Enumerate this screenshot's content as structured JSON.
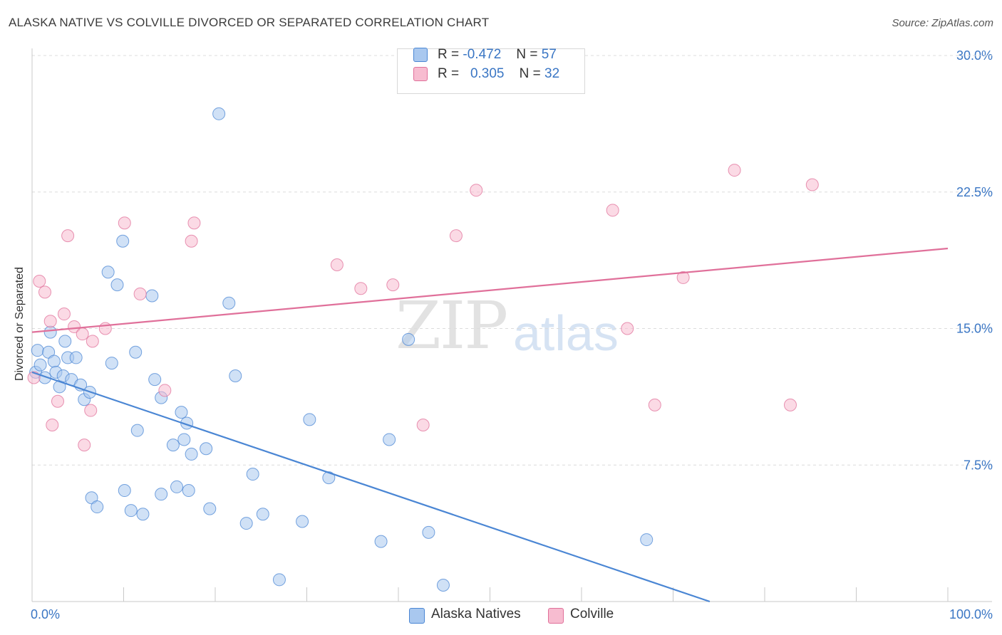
{
  "title": "ALASKA NATIVE VS COLVILLE DIVORCED OR SEPARATED CORRELATION CHART",
  "source": "Source: ZipAtlas.com",
  "watermark": {
    "zip": "ZIP",
    "atlas": "atlas"
  },
  "legend": {
    "rows": [
      {
        "r_label": "R =",
        "r_value": "-0.472",
        "n_label": "N =",
        "n_value": "57",
        "color": "#a9c8ef"
      },
      {
        "r_label": "R =",
        "r_value": "0.305",
        "n_label": "N =",
        "n_value": "32",
        "color": "#f7bcd0"
      }
    ]
  },
  "bottom_legend": [
    {
      "label": "Alaska Natives",
      "color": "#a9c8ef"
    },
    {
      "label": "Colville",
      "color": "#f7bcd0"
    }
  ],
  "chart_data": {
    "type": "scatter",
    "title": "ALASKA NATIVE VS COLVILLE DIVORCED OR SEPARATED CORRELATION CHART",
    "xlabel": "",
    "ylabel": "Divorced or Separated",
    "xlim": [
      0,
      100
    ],
    "ylim": [
      0,
      30
    ],
    "x_tick_labels": [
      "0.0%",
      "100.0%"
    ],
    "y_ticks": [
      7.5,
      15.0,
      22.5,
      30.0
    ],
    "y_tick_labels": [
      "7.5%",
      "15.0%",
      "22.5%",
      "30.0%"
    ],
    "grid": true,
    "legend_position": "top-center",
    "series": [
      {
        "name": "Alaska Natives",
        "color": "#4a86d4",
        "fill": "#a9c8ef",
        "trend": {
          "x": [
            0,
            74
          ],
          "y": [
            12.6,
            0.0
          ]
        },
        "points": [
          {
            "x": 0.4,
            "y": 12.6
          },
          {
            "x": 0.6,
            "y": 13.8
          },
          {
            "x": 0.9,
            "y": 13.0
          },
          {
            "x": 1.4,
            "y": 12.3
          },
          {
            "x": 1.8,
            "y": 13.7
          },
          {
            "x": 2.0,
            "y": 14.8
          },
          {
            "x": 2.4,
            "y": 13.2
          },
          {
            "x": 2.6,
            "y": 12.6
          },
          {
            "x": 3.0,
            "y": 11.8
          },
          {
            "x": 3.4,
            "y": 12.4
          },
          {
            "x": 3.6,
            "y": 14.3
          },
          {
            "x": 3.9,
            "y": 13.4
          },
          {
            "x": 4.3,
            "y": 12.2
          },
          {
            "x": 4.8,
            "y": 13.4
          },
          {
            "x": 5.3,
            "y": 11.9
          },
          {
            "x": 5.7,
            "y": 11.1
          },
          {
            "x": 6.3,
            "y": 11.5
          },
          {
            "x": 6.5,
            "y": 5.7
          },
          {
            "x": 7.1,
            "y": 5.2
          },
          {
            "x": 8.3,
            "y": 18.1
          },
          {
            "x": 8.7,
            "y": 13.1
          },
          {
            "x": 9.3,
            "y": 17.4
          },
          {
            "x": 9.9,
            "y": 19.8
          },
          {
            "x": 10.1,
            "y": 6.1
          },
          {
            "x": 11.3,
            "y": 13.7
          },
          {
            "x": 11.5,
            "y": 9.4
          },
          {
            "x": 12.1,
            "y": 4.8
          },
          {
            "x": 10.8,
            "y": 5.0
          },
          {
            "x": 13.1,
            "y": 16.8
          },
          {
            "x": 13.4,
            "y": 12.2
          },
          {
            "x": 14.1,
            "y": 5.9
          },
          {
            "x": 14.1,
            "y": 11.2
          },
          {
            "x": 15.4,
            "y": 8.6
          },
          {
            "x": 15.8,
            "y": 6.3
          },
          {
            "x": 16.3,
            "y": 10.4
          },
          {
            "x": 16.6,
            "y": 8.9
          },
          {
            "x": 16.9,
            "y": 9.8
          },
          {
            "x": 17.4,
            "y": 8.1
          },
          {
            "x": 17.1,
            "y": 6.1
          },
          {
            "x": 19.0,
            "y": 8.4
          },
          {
            "x": 19.4,
            "y": 5.1
          },
          {
            "x": 20.4,
            "y": 26.8
          },
          {
            "x": 21.5,
            "y": 16.4
          },
          {
            "x": 22.2,
            "y": 12.4
          },
          {
            "x": 23.4,
            "y": 4.3
          },
          {
            "x": 24.1,
            "y": 7.0
          },
          {
            "x": 25.2,
            "y": 4.8
          },
          {
            "x": 27.0,
            "y": 1.2
          },
          {
            "x": 29.5,
            "y": 4.4
          },
          {
            "x": 30.3,
            "y": 10.0
          },
          {
            "x": 32.4,
            "y": 6.8
          },
          {
            "x": 38.1,
            "y": 3.3
          },
          {
            "x": 39.0,
            "y": 8.9
          },
          {
            "x": 41.1,
            "y": 14.4
          },
          {
            "x": 43.3,
            "y": 3.8
          },
          {
            "x": 44.9,
            "y": 0.9
          },
          {
            "x": 67.1,
            "y": 3.4
          }
        ]
      },
      {
        "name": "Colville",
        "color": "#e0709a",
        "fill": "#f7bcd0",
        "trend": {
          "x": [
            0,
            100
          ],
          "y": [
            14.8,
            19.4
          ]
        },
        "points": [
          {
            "x": 0.2,
            "y": 12.3
          },
          {
            "x": 0.8,
            "y": 17.6
          },
          {
            "x": 1.4,
            "y": 17.0
          },
          {
            "x": 2.0,
            "y": 15.4
          },
          {
            "x": 2.2,
            "y": 9.7
          },
          {
            "x": 2.8,
            "y": 11.0
          },
          {
            "x": 3.5,
            "y": 15.8
          },
          {
            "x": 3.9,
            "y": 20.1
          },
          {
            "x": 4.6,
            "y": 15.1
          },
          {
            "x": 5.5,
            "y": 14.7
          },
          {
            "x": 5.7,
            "y": 8.6
          },
          {
            "x": 6.4,
            "y": 10.5
          },
          {
            "x": 6.6,
            "y": 14.3
          },
          {
            "x": 8.0,
            "y": 15.0
          },
          {
            "x": 10.1,
            "y": 20.8
          },
          {
            "x": 11.8,
            "y": 16.9
          },
          {
            "x": 14.5,
            "y": 11.6
          },
          {
            "x": 17.4,
            "y": 19.8
          },
          {
            "x": 17.7,
            "y": 20.8
          },
          {
            "x": 33.3,
            "y": 18.5
          },
          {
            "x": 35.9,
            "y": 17.2
          },
          {
            "x": 39.4,
            "y": 17.4
          },
          {
            "x": 42.7,
            "y": 9.7
          },
          {
            "x": 46.3,
            "y": 20.1
          },
          {
            "x": 48.5,
            "y": 22.6
          },
          {
            "x": 63.4,
            "y": 21.5
          },
          {
            "x": 65.0,
            "y": 15.0
          },
          {
            "x": 68.0,
            "y": 10.8
          },
          {
            "x": 71.1,
            "y": 17.8
          },
          {
            "x": 76.7,
            "y": 23.7
          },
          {
            "x": 82.8,
            "y": 10.8
          },
          {
            "x": 85.2,
            "y": 22.9
          }
        ]
      }
    ]
  }
}
